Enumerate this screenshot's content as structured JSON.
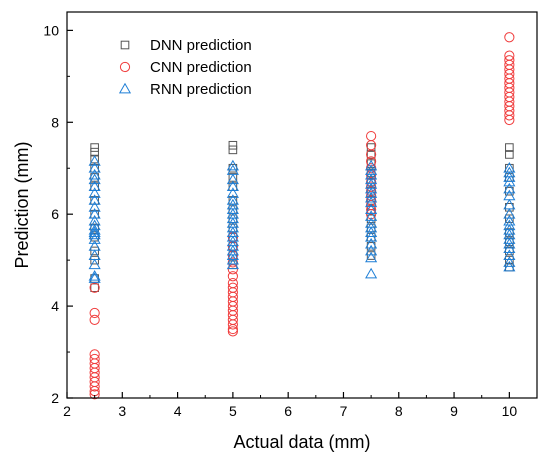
{
  "chart_data": {
    "type": "scatter",
    "title": "",
    "xlabel": "Actual data (mm)",
    "ylabel": "Prediction (mm)",
    "xlim": [
      2,
      10.5
    ],
    "ylim": [
      2,
      10.4
    ],
    "xticks": [
      2,
      3,
      4,
      5,
      6,
      7,
      8,
      9,
      10
    ],
    "yticks": [
      2,
      4,
      6,
      8,
      10
    ],
    "grid": false,
    "legend_position": "top-left",
    "series": [
      {
        "name": "DNN prediction",
        "marker": "square",
        "color": "#555555",
        "points": [
          [
            2.5,
            7.45
          ],
          [
            2.5,
            7.35
          ],
          [
            2.5,
            7.2
          ],
          [
            2.5,
            7.0
          ],
          [
            2.5,
            6.8
          ],
          [
            2.5,
            6.6
          ],
          [
            2.5,
            6.3
          ],
          [
            2.5,
            6.0
          ],
          [
            2.5,
            5.7
          ],
          [
            2.5,
            5.5
          ],
          [
            2.5,
            5.2
          ],
          [
            2.5,
            5.0
          ],
          [
            2.5,
            4.6
          ],
          [
            2.5,
            4.4
          ],
          [
            5,
            7.5
          ],
          [
            5,
            7.4
          ],
          [
            5,
            7.0
          ],
          [
            5,
            6.8
          ],
          [
            5,
            6.6
          ],
          [
            5,
            6.3
          ],
          [
            5,
            6.1
          ],
          [
            5,
            5.9
          ],
          [
            5,
            5.7
          ],
          [
            5,
            5.5
          ],
          [
            5,
            5.3
          ],
          [
            5,
            5.1
          ],
          [
            5,
            4.9
          ],
          [
            7.5,
            7.45
          ],
          [
            7.5,
            7.3
          ],
          [
            7.5,
            7.1
          ],
          [
            7.5,
            6.9
          ],
          [
            7.5,
            6.7
          ],
          [
            7.5,
            6.5
          ],
          [
            7.5,
            6.3
          ],
          [
            7.5,
            6.1
          ],
          [
            7.5,
            5.9
          ],
          [
            7.5,
            5.7
          ],
          [
            7.5,
            5.5
          ],
          [
            7.5,
            5.3
          ],
          [
            7.5,
            5.1
          ],
          [
            10,
            7.45
          ],
          [
            10,
            7.3
          ],
          [
            10,
            7.0
          ],
          [
            10,
            6.8
          ],
          [
            10,
            6.5
          ],
          [
            10,
            6.15
          ],
          [
            10,
            5.9
          ],
          [
            10,
            5.6
          ],
          [
            10,
            5.4
          ],
          [
            10,
            5.2
          ],
          [
            10,
            5.0
          ],
          [
            10,
            4.85
          ]
        ]
      },
      {
        "name": "CNN prediction",
        "marker": "circle",
        "color": "#f03c3c",
        "points": [
          [
            2.5,
            4.4
          ],
          [
            2.5,
            3.85
          ],
          [
            2.5,
            3.7
          ],
          [
            2.5,
            2.95
          ],
          [
            2.5,
            2.85
          ],
          [
            2.5,
            2.75
          ],
          [
            2.5,
            2.65
          ],
          [
            2.5,
            2.55
          ],
          [
            2.5,
            2.45
          ],
          [
            2.5,
            2.35
          ],
          [
            2.5,
            2.25
          ],
          [
            2.5,
            2.15
          ],
          [
            2.5,
            2.08
          ],
          [
            5,
            5.5
          ],
          [
            5,
            5.3
          ],
          [
            5,
            5.1
          ],
          [
            5,
            4.95
          ],
          [
            5,
            4.8
          ],
          [
            5,
            4.65
          ],
          [
            5,
            4.5
          ],
          [
            5,
            4.4
          ],
          [
            5,
            4.3
          ],
          [
            5,
            4.2
          ],
          [
            5,
            4.1
          ],
          [
            5,
            4.0
          ],
          [
            5,
            3.9
          ],
          [
            5,
            3.8
          ],
          [
            5,
            3.7
          ],
          [
            5,
            3.6
          ],
          [
            5,
            3.5
          ],
          [
            5,
            3.45
          ],
          [
            7.5,
            7.7
          ],
          [
            7.5,
            7.5
          ],
          [
            7.5,
            7.3
          ],
          [
            7.5,
            7.15
          ],
          [
            7.5,
            7.0
          ],
          [
            7.5,
            6.85
          ],
          [
            7.5,
            6.7
          ],
          [
            7.5,
            6.6
          ],
          [
            7.5,
            6.5
          ],
          [
            7.5,
            6.4
          ],
          [
            7.5,
            6.3
          ],
          [
            7.5,
            6.2
          ],
          [
            7.5,
            6.1
          ],
          [
            7.5,
            6.0
          ],
          [
            10,
            9.85
          ],
          [
            10,
            9.45
          ],
          [
            10,
            9.35
          ],
          [
            10,
            9.25
          ],
          [
            10,
            9.15
          ],
          [
            10,
            9.05
          ],
          [
            10,
            8.95
          ],
          [
            10,
            8.85
          ],
          [
            10,
            8.75
          ],
          [
            10,
            8.65
          ],
          [
            10,
            8.55
          ],
          [
            10,
            8.45
          ],
          [
            10,
            8.35
          ],
          [
            10,
            8.25
          ],
          [
            10,
            8.15
          ],
          [
            10,
            8.05
          ]
        ]
      },
      {
        "name": "RNN prediction",
        "marker": "triangle",
        "color": "#1f7fd6",
        "points": [
          [
            2.5,
            7.15
          ],
          [
            2.5,
            7.0
          ],
          [
            2.5,
            6.85
          ],
          [
            2.5,
            6.75
          ],
          [
            2.5,
            6.6
          ],
          [
            2.5,
            6.45
          ],
          [
            2.5,
            6.3
          ],
          [
            2.5,
            6.15
          ],
          [
            2.5,
            6.0
          ],
          [
            2.5,
            5.85
          ],
          [
            2.5,
            5.75
          ],
          [
            2.5,
            5.65
          ],
          [
            2.5,
            5.6
          ],
          [
            2.5,
            5.55
          ],
          [
            2.5,
            5.45
          ],
          [
            2.5,
            5.3
          ],
          [
            2.5,
            5.1
          ],
          [
            2.5,
            4.9
          ],
          [
            2.5,
            4.65
          ],
          [
            2.5,
            4.6
          ],
          [
            5,
            7.05
          ],
          [
            5,
            6.95
          ],
          [
            5,
            6.75
          ],
          [
            5,
            6.6
          ],
          [
            5,
            6.45
          ],
          [
            5,
            6.3
          ],
          [
            5,
            6.2
          ],
          [
            5,
            6.1
          ],
          [
            5,
            6.0
          ],
          [
            5,
            5.9
          ],
          [
            5,
            5.8
          ],
          [
            5,
            5.7
          ],
          [
            5,
            5.6
          ],
          [
            5,
            5.5
          ],
          [
            5,
            5.4
          ],
          [
            5,
            5.3
          ],
          [
            5,
            5.2
          ],
          [
            5,
            5.1
          ],
          [
            5,
            5.0
          ],
          [
            5,
            4.9
          ],
          [
            7.5,
            7.05
          ],
          [
            7.5,
            6.95
          ],
          [
            7.5,
            6.85
          ],
          [
            7.5,
            6.75
          ],
          [
            7.5,
            6.65
          ],
          [
            7.5,
            6.55
          ],
          [
            7.5,
            6.45
          ],
          [
            7.5,
            6.35
          ],
          [
            7.5,
            6.25
          ],
          [
            7.5,
            6.1
          ],
          [
            7.5,
            5.95
          ],
          [
            7.5,
            5.8
          ],
          [
            7.5,
            5.7
          ],
          [
            7.5,
            5.6
          ],
          [
            7.5,
            5.5
          ],
          [
            7.5,
            5.35
          ],
          [
            7.5,
            5.2
          ],
          [
            7.5,
            5.05
          ],
          [
            7.5,
            4.7
          ],
          [
            10,
            7.0
          ],
          [
            10,
            6.9
          ],
          [
            10,
            6.8
          ],
          [
            10,
            6.7
          ],
          [
            10,
            6.55
          ],
          [
            10,
            6.4
          ],
          [
            10,
            6.2
          ],
          [
            10,
            6.0
          ],
          [
            10,
            5.85
          ],
          [
            10,
            5.75
          ],
          [
            10,
            5.65
          ],
          [
            10,
            5.55
          ],
          [
            10,
            5.45
          ],
          [
            10,
            5.35
          ],
          [
            10,
            5.25
          ],
          [
            10,
            5.1
          ],
          [
            10,
            4.95
          ],
          [
            10,
            4.85
          ]
        ]
      }
    ]
  }
}
